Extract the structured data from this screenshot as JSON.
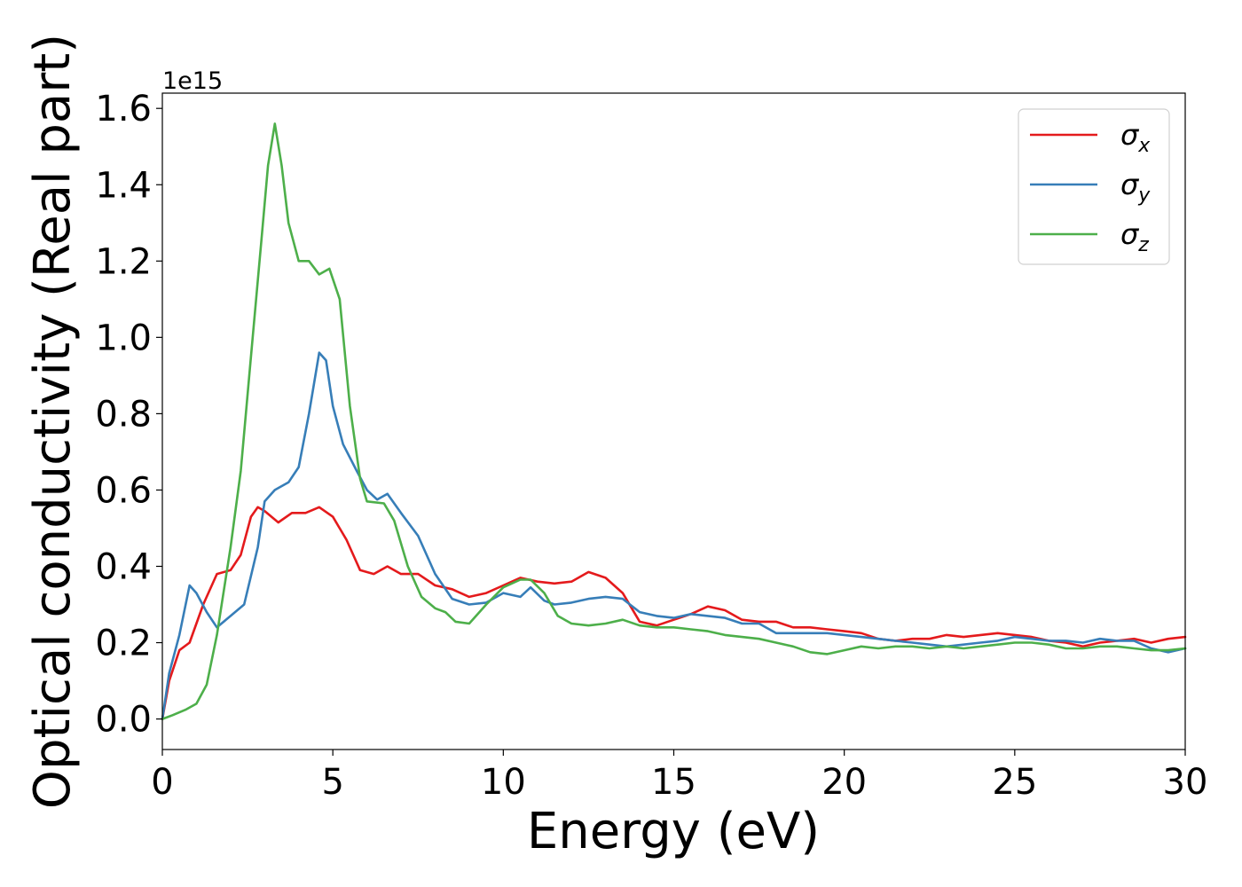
{
  "chart_data": {
    "type": "line",
    "xlabel": "Energy (eV)",
    "ylabel": "Optical conductivity (Real part)",
    "y_offset_label": "1e15",
    "xlim": [
      0,
      30
    ],
    "ylim": [
      -0.08,
      1.64
    ],
    "y_scale_factor": 1000000000000000.0,
    "grid": false,
    "legend_position": "top-right",
    "x_ticks": [
      0,
      5,
      10,
      15,
      20,
      25,
      30
    ],
    "y_ticks": [
      0.0,
      0.2,
      0.4,
      0.6,
      0.8,
      1.0,
      1.2,
      1.4,
      1.6
    ],
    "series": [
      {
        "name": "σx",
        "legend_base": "σ",
        "legend_sub": "x",
        "color": "#e41a1c",
        "points": [
          [
            0,
            0
          ],
          [
            0.2,
            0.1
          ],
          [
            0.5,
            0.18
          ],
          [
            0.8,
            0.2
          ],
          [
            1.2,
            0.3
          ],
          [
            1.6,
            0.38
          ],
          [
            2.0,
            0.39
          ],
          [
            2.3,
            0.43
          ],
          [
            2.6,
            0.53
          ],
          [
            2.8,
            0.555
          ],
          [
            3.0,
            0.545
          ],
          [
            3.4,
            0.515
          ],
          [
            3.8,
            0.54
          ],
          [
            4.2,
            0.54
          ],
          [
            4.6,
            0.555
          ],
          [
            5.0,
            0.53
          ],
          [
            5.4,
            0.47
          ],
          [
            5.8,
            0.39
          ],
          [
            6.2,
            0.38
          ],
          [
            6.6,
            0.4
          ],
          [
            7.0,
            0.38
          ],
          [
            7.5,
            0.38
          ],
          [
            8.0,
            0.35
          ],
          [
            8.5,
            0.34
          ],
          [
            9.0,
            0.32
          ],
          [
            9.5,
            0.33
          ],
          [
            10.0,
            0.35
          ],
          [
            10.5,
            0.37
          ],
          [
            11.0,
            0.36
          ],
          [
            11.5,
            0.355
          ],
          [
            12.0,
            0.36
          ],
          [
            12.5,
            0.385
          ],
          [
            13.0,
            0.37
          ],
          [
            13.5,
            0.33
          ],
          [
            14.0,
            0.255
          ],
          [
            14.5,
            0.245
          ],
          [
            15.0,
            0.26
          ],
          [
            15.5,
            0.275
          ],
          [
            16.0,
            0.295
          ],
          [
            16.5,
            0.285
          ],
          [
            17.0,
            0.26
          ],
          [
            17.5,
            0.255
          ],
          [
            18.0,
            0.255
          ],
          [
            18.5,
            0.24
          ],
          [
            19.0,
            0.24
          ],
          [
            19.5,
            0.235
          ],
          [
            20.0,
            0.23
          ],
          [
            20.5,
            0.225
          ],
          [
            21.0,
            0.21
          ],
          [
            21.5,
            0.205
          ],
          [
            22.0,
            0.21
          ],
          [
            22.5,
            0.21
          ],
          [
            23.0,
            0.22
          ],
          [
            23.5,
            0.215
          ],
          [
            24.0,
            0.22
          ],
          [
            24.5,
            0.225
          ],
          [
            25.0,
            0.22
          ],
          [
            25.5,
            0.215
          ],
          [
            26.0,
            0.205
          ],
          [
            26.5,
            0.2
          ],
          [
            27.0,
            0.19
          ],
          [
            27.5,
            0.2
          ],
          [
            28.0,
            0.205
          ],
          [
            28.5,
            0.21
          ],
          [
            29.0,
            0.2
          ],
          [
            29.5,
            0.21
          ],
          [
            30.0,
            0.215
          ]
        ]
      },
      {
        "name": "σy",
        "legend_base": "σ",
        "legend_sub": "y",
        "color": "#377eb8",
        "points": [
          [
            0,
            0
          ],
          [
            0.2,
            0.12
          ],
          [
            0.5,
            0.22
          ],
          [
            0.8,
            0.35
          ],
          [
            1.0,
            0.33
          ],
          [
            1.3,
            0.28
          ],
          [
            1.6,
            0.24
          ],
          [
            2.0,
            0.27
          ],
          [
            2.4,
            0.3
          ],
          [
            2.8,
            0.45
          ],
          [
            3.0,
            0.57
          ],
          [
            3.3,
            0.6
          ],
          [
            3.7,
            0.62
          ],
          [
            4.0,
            0.66
          ],
          [
            4.3,
            0.8
          ],
          [
            4.6,
            0.96
          ],
          [
            4.8,
            0.94
          ],
          [
            5.0,
            0.82
          ],
          [
            5.3,
            0.72
          ],
          [
            5.7,
            0.65
          ],
          [
            6.0,
            0.6
          ],
          [
            6.3,
            0.575
          ],
          [
            6.6,
            0.59
          ],
          [
            7.0,
            0.54
          ],
          [
            7.5,
            0.48
          ],
          [
            8.0,
            0.38
          ],
          [
            8.5,
            0.315
          ],
          [
            9.0,
            0.3
          ],
          [
            9.5,
            0.305
          ],
          [
            10.0,
            0.33
          ],
          [
            10.5,
            0.32
          ],
          [
            10.8,
            0.345
          ],
          [
            11.2,
            0.31
          ],
          [
            11.5,
            0.3
          ],
          [
            12.0,
            0.305
          ],
          [
            12.5,
            0.315
          ],
          [
            13.0,
            0.32
          ],
          [
            13.5,
            0.315
          ],
          [
            14.0,
            0.28
          ],
          [
            14.5,
            0.27
          ],
          [
            15.0,
            0.265
          ],
          [
            15.5,
            0.275
          ],
          [
            16.0,
            0.27
          ],
          [
            16.5,
            0.265
          ],
          [
            17.0,
            0.25
          ],
          [
            17.5,
            0.25
          ],
          [
            18.0,
            0.225
          ],
          [
            18.5,
            0.225
          ],
          [
            19.0,
            0.225
          ],
          [
            19.5,
            0.225
          ],
          [
            20.0,
            0.22
          ],
          [
            20.5,
            0.215
          ],
          [
            21.0,
            0.21
          ],
          [
            21.5,
            0.205
          ],
          [
            22.0,
            0.2
          ],
          [
            22.5,
            0.195
          ],
          [
            23.0,
            0.19
          ],
          [
            23.5,
            0.195
          ],
          [
            24.0,
            0.2
          ],
          [
            24.5,
            0.205
          ],
          [
            25.0,
            0.215
          ],
          [
            25.5,
            0.21
          ],
          [
            26.0,
            0.205
          ],
          [
            26.5,
            0.205
          ],
          [
            27.0,
            0.2
          ],
          [
            27.5,
            0.21
          ],
          [
            28.0,
            0.205
          ],
          [
            28.5,
            0.205
          ],
          [
            29.0,
            0.185
          ],
          [
            29.5,
            0.175
          ],
          [
            30.0,
            0.185
          ]
        ]
      },
      {
        "name": "σz",
        "legend_base": "σ",
        "legend_sub": "z",
        "color": "#4daf4a",
        "points": [
          [
            0,
            0
          ],
          [
            0.3,
            0.01
          ],
          [
            0.7,
            0.025
          ],
          [
            1.0,
            0.04
          ],
          [
            1.3,
            0.09
          ],
          [
            1.6,
            0.22
          ],
          [
            2.0,
            0.45
          ],
          [
            2.3,
            0.65
          ],
          [
            2.6,
            0.95
          ],
          [
            2.9,
            1.25
          ],
          [
            3.1,
            1.45
          ],
          [
            3.3,
            1.56
          ],
          [
            3.5,
            1.45
          ],
          [
            3.7,
            1.3
          ],
          [
            4.0,
            1.2
          ],
          [
            4.3,
            1.2
          ],
          [
            4.6,
            1.165
          ],
          [
            4.9,
            1.18
          ],
          [
            5.2,
            1.1
          ],
          [
            5.5,
            0.82
          ],
          [
            5.8,
            0.63
          ],
          [
            6.0,
            0.57
          ],
          [
            6.5,
            0.565
          ],
          [
            6.8,
            0.52
          ],
          [
            7.2,
            0.4
          ],
          [
            7.6,
            0.32
          ],
          [
            8.0,
            0.29
          ],
          [
            8.3,
            0.28
          ],
          [
            8.6,
            0.255
          ],
          [
            9.0,
            0.25
          ],
          [
            9.5,
            0.3
          ],
          [
            10.0,
            0.345
          ],
          [
            10.5,
            0.365
          ],
          [
            10.8,
            0.365
          ],
          [
            11.2,
            0.33
          ],
          [
            11.6,
            0.27
          ],
          [
            12.0,
            0.25
          ],
          [
            12.5,
            0.245
          ],
          [
            13.0,
            0.25
          ],
          [
            13.5,
            0.26
          ],
          [
            14.0,
            0.245
          ],
          [
            14.5,
            0.24
          ],
          [
            15.0,
            0.24
          ],
          [
            15.5,
            0.235
          ],
          [
            16.0,
            0.23
          ],
          [
            16.5,
            0.22
          ],
          [
            17.0,
            0.215
          ],
          [
            17.5,
            0.21
          ],
          [
            18.0,
            0.2
          ],
          [
            18.5,
            0.19
          ],
          [
            19.0,
            0.175
          ],
          [
            19.5,
            0.17
          ],
          [
            20.0,
            0.18
          ],
          [
            20.5,
            0.19
          ],
          [
            21.0,
            0.185
          ],
          [
            21.5,
            0.19
          ],
          [
            22.0,
            0.19
          ],
          [
            22.5,
            0.185
          ],
          [
            23.0,
            0.19
          ],
          [
            23.5,
            0.185
          ],
          [
            24.0,
            0.19
          ],
          [
            24.5,
            0.195
          ],
          [
            25.0,
            0.2
          ],
          [
            25.5,
            0.2
          ],
          [
            26.0,
            0.195
          ],
          [
            26.5,
            0.185
          ],
          [
            27.0,
            0.185
          ],
          [
            27.5,
            0.19
          ],
          [
            28.0,
            0.19
          ],
          [
            28.5,
            0.185
          ],
          [
            29.0,
            0.18
          ],
          [
            29.5,
            0.18
          ],
          [
            30.0,
            0.185
          ]
        ]
      }
    ]
  }
}
